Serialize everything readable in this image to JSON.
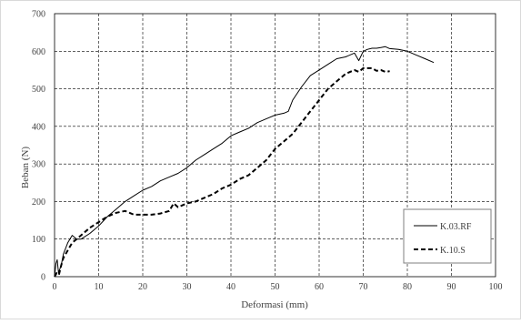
{
  "chart_data": {
    "type": "line",
    "xlabel": "Deformasi (mm)",
    "ylabel": "Beban (N)",
    "xlim": [
      0,
      100
    ],
    "ylim": [
      0,
      700
    ],
    "xticks": [
      "0",
      "10",
      "20",
      "30",
      "40",
      "50",
      "60",
      "70",
      "80",
      "90",
      "100"
    ],
    "yticks": [
      "0",
      "100",
      "200",
      "300",
      "400",
      "500",
      "600",
      "700"
    ],
    "grid": "dashed",
    "legend_position": "bottom-right",
    "series": [
      {
        "name": "K.03.RF",
        "style": "solid",
        "color": "#000000",
        "x": [
          0,
          0.3,
          0.6,
          0.9,
          1.2,
          1.5,
          2,
          3,
          4,
          5,
          6,
          8,
          10,
          12,
          14,
          16,
          18,
          20,
          22,
          24,
          26,
          28,
          30,
          32,
          34,
          36,
          38,
          40,
          42,
          44,
          46,
          48,
          50,
          52,
          53,
          54,
          56,
          58,
          60,
          62,
          64,
          66,
          68,
          69,
          70,
          71,
          72,
          73,
          74,
          75,
          76,
          78,
          80,
          82,
          84,
          86
        ],
        "y": [
          0,
          35,
          45,
          10,
          20,
          30,
          60,
          90,
          110,
          100,
          100,
          115,
          135,
          160,
          180,
          200,
          215,
          230,
          240,
          255,
          265,
          275,
          290,
          310,
          325,
          340,
          355,
          375,
          385,
          395,
          410,
          420,
          430,
          435,
          440,
          470,
          505,
          535,
          550,
          565,
          580,
          585,
          595,
          575,
          600,
          605,
          608,
          608,
          610,
          612,
          607,
          605,
          600,
          590,
          580,
          570
        ]
      },
      {
        "name": "K.10.S",
        "style": "dashed",
        "color": "#000000",
        "x": [
          0,
          0.5,
          1,
          1.5,
          2,
          3,
          4,
          6,
          8,
          10,
          12,
          14,
          16,
          17,
          18,
          20,
          22,
          24,
          26,
          27,
          28,
          30,
          32,
          34,
          36,
          38,
          40,
          42,
          44,
          46,
          48,
          50,
          52,
          54,
          56,
          58,
          60,
          62,
          64,
          66,
          68,
          69,
          70,
          71,
          72,
          73,
          74,
          75,
          76
        ],
        "y": [
          0,
          10,
          5,
          30,
          50,
          70,
          90,
          110,
          130,
          145,
          160,
          170,
          175,
          170,
          165,
          165,
          165,
          168,
          175,
          195,
          185,
          195,
          200,
          210,
          220,
          235,
          245,
          260,
          270,
          290,
          310,
          340,
          360,
          380,
          410,
          440,
          470,
          500,
          520,
          540,
          550,
          545,
          555,
          555,
          555,
          548,
          550,
          545,
          547
        ]
      }
    ]
  }
}
